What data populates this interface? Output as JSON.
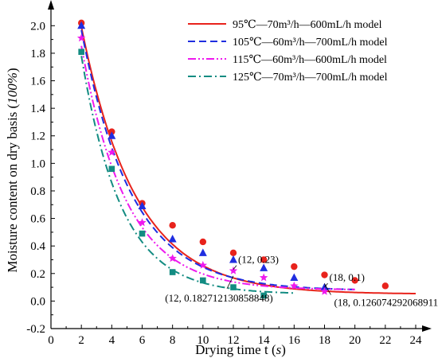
{
  "chart_data": {
    "type": "scatter",
    "xlabel": {
      "text": "Drying time t (",
      "unit": "s",
      "close": ")"
    },
    "ylabel": {
      "text": "Moisture content on dry basis (",
      "unit": "100%",
      "close": ")"
    },
    "xlim": [
      0,
      24
    ],
    "ylim": [
      -0.2,
      2.1
    ],
    "xticks": [
      0,
      2,
      4,
      6,
      8,
      10,
      12,
      14,
      16,
      18,
      20,
      22,
      24
    ],
    "xtick_labels": [
      "0",
      "2",
      "4",
      "6",
      "8",
      "10",
      "12",
      "14",
      "16",
      "18",
      "20",
      "22",
      "24"
    ],
    "yticks": [
      -0.2,
      0.0,
      0.2,
      0.4,
      0.6,
      0.8,
      1.0,
      1.2,
      1.4,
      1.6,
      1.8,
      2.0
    ],
    "ytick_labels": [
      "-0.2",
      "0.0",
      "0.2",
      "0.4",
      "0.6",
      "0.8",
      "1.0",
      "1.2",
      "1.4",
      "1.6",
      "1.8",
      "2.0"
    ],
    "grid": false,
    "legend_placement": "top-right",
    "series": [
      {
        "name": "95℃—70m³/h—600mL/h model",
        "color": "#e8231c",
        "line_style": "solid",
        "marker": "circle",
        "x": [
          2,
          4,
          6,
          8,
          10,
          12,
          14,
          16,
          18,
          20,
          22
        ],
        "y": [
          2.02,
          1.23,
          0.71,
          0.55,
          0.43,
          0.35,
          0.3,
          0.25,
          0.19,
          0.15,
          0.11
        ],
        "model": {
          "a": 3.4,
          "k": 0.28,
          "c": 0.05,
          "x_start": 2,
          "x_end": 24
        }
      },
      {
        "name": "105℃—60m³/h—700mL/h model",
        "color": "#1f2de0",
        "line_style": "dash",
        "marker": "triangle",
        "x": [
          2,
          4,
          6,
          8,
          10,
          12,
          14,
          16,
          18
        ],
        "y": [
          2.0,
          1.2,
          0.69,
          0.45,
          0.35,
          0.3,
          0.24,
          0.17,
          0.1
        ],
        "model": {
          "a": 3.45,
          "k": 0.3,
          "c": 0.075,
          "x_start": 2,
          "x_end": 20
        }
      },
      {
        "name": "115℃—60m³/h—600mL/h model",
        "color": "#ee19ee",
        "line_style": "dashdotdot",
        "marker": "star",
        "x": [
          2,
          4,
          6,
          8,
          10,
          12,
          14,
          16,
          18
        ],
        "y": [
          1.91,
          1.08,
          0.57,
          0.31,
          0.26,
          0.22,
          0.17,
          0.11,
          0.07
        ],
        "model": {
          "a": 3.5,
          "k": 0.34,
          "c": 0.08,
          "x_start": 2,
          "x_end": 20
        }
      },
      {
        "name": "125℃—70m³/h—700mL/h model",
        "color": "#138c82",
        "line_style": "dashdot",
        "marker": "square",
        "x": [
          2,
          4,
          6,
          8,
          10,
          12,
          14
        ],
        "y": [
          1.81,
          0.96,
          0.49,
          0.21,
          0.15,
          0.1,
          0.04
        ],
        "model": {
          "a": 3.7,
          "k": 0.38,
          "c": 0.05,
          "x_start": 2,
          "x_end": 16
        }
      }
    ],
    "annotations": [
      {
        "text": "(12, 0.23)",
        "x": 12,
        "y": 0.23,
        "label_anchor": "above-right"
      },
      {
        "text": "(18, 0.1)",
        "x": 18,
        "y": 0.1,
        "label_anchor": "above-right"
      },
      {
        "text": "(12, 0.182712130858848)",
        "x": 12,
        "y": 0.182712130858848,
        "label_anchor": "below-left"
      },
      {
        "text": "(18, 0.126074292068911)",
        "x": 18,
        "y": 0.126074292068911,
        "label_anchor": "below-right"
      }
    ]
  }
}
